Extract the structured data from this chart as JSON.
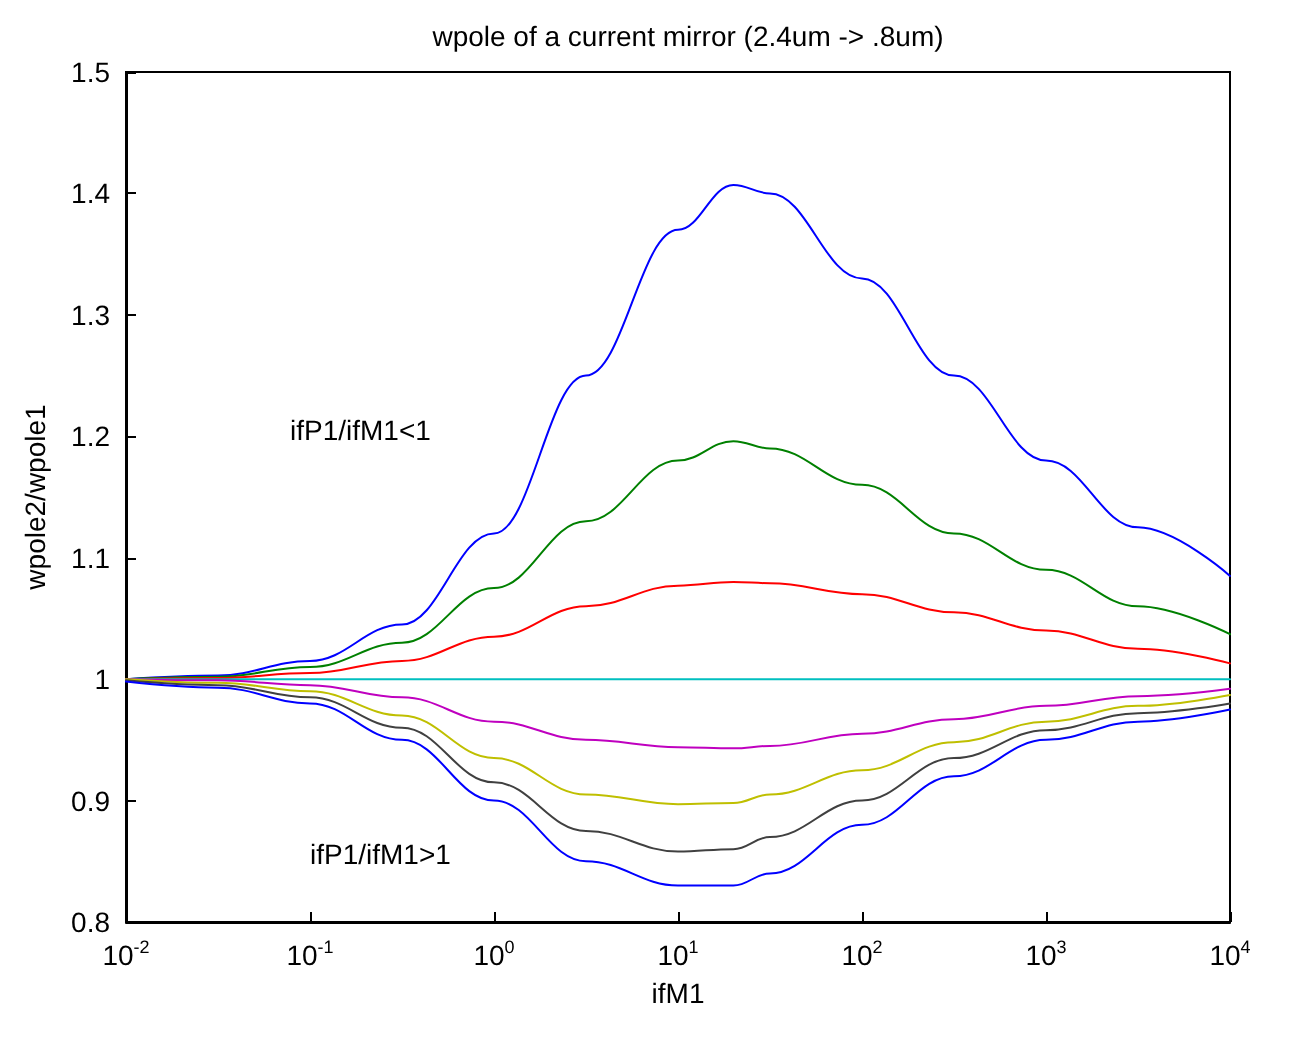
{
  "chart_data": {
    "type": "line",
    "title": "wpole of a current mirror (2.4um -> .8um)",
    "xlabel": "ifM1",
    "ylabel": "wpole2/wpole1",
    "x": [
      0.01,
      0.0316,
      0.1,
      0.316,
      1,
      3.16,
      10,
      20,
      31.6,
      100,
      316,
      1000,
      3162,
      10000
    ],
    "series": [
      {
        "color": "#0000ff",
        "values": [
          1.0,
          1.003,
          1.015,
          1.045,
          1.12,
          1.25,
          1.37,
          1.407,
          1.4,
          1.33,
          1.25,
          1.18,
          1.125,
          1.085
        ]
      },
      {
        "color": "#008000",
        "values": [
          1.0,
          1.002,
          1.01,
          1.03,
          1.075,
          1.13,
          1.18,
          1.196,
          1.19,
          1.16,
          1.12,
          1.09,
          1.06,
          1.037
        ]
      },
      {
        "color": "#ff0000",
        "values": [
          1.0,
          1.001,
          1.005,
          1.015,
          1.035,
          1.06,
          1.077,
          1.08,
          1.079,
          1.07,
          1.055,
          1.04,
          1.025,
          1.013
        ]
      },
      {
        "color": "#00bfbf",
        "values": [
          1,
          1,
          1,
          1,
          1,
          1,
          1,
          1,
          1,
          1,
          1,
          1,
          1,
          1
        ]
      },
      {
        "color": "#bf00bf",
        "values": [
          1.0,
          0.999,
          0.995,
          0.985,
          0.965,
          0.95,
          0.944,
          0.943,
          0.945,
          0.955,
          0.967,
          0.978,
          0.986,
          0.992
        ]
      },
      {
        "color": "#bfbf00",
        "values": [
          1.0,
          0.997,
          0.99,
          0.97,
          0.935,
          0.905,
          0.897,
          0.898,
          0.905,
          0.925,
          0.948,
          0.965,
          0.978,
          0.987
        ]
      },
      {
        "color": "#404040",
        "values": [
          0.999,
          0.995,
          0.985,
          0.96,
          0.915,
          0.875,
          0.858,
          0.86,
          0.87,
          0.9,
          0.935,
          0.958,
          0.972,
          0.98
        ]
      },
      {
        "color": "#0000ff",
        "values": [
          0.998,
          0.993,
          0.98,
          0.95,
          0.9,
          0.85,
          0.83,
          0.83,
          0.84,
          0.88,
          0.92,
          0.95,
          0.965,
          0.975
        ]
      }
    ],
    "log": "x",
    "xlim": [
      0.01,
      10000
    ],
    "xticks": [
      {
        "value": 0.01,
        "label": "10$^{-2}$"
      },
      {
        "value": 0.1,
        "label": "10$^{-1}$"
      },
      {
        "value": 1,
        "label": "10$^{0}$"
      },
      {
        "value": 10,
        "label": "10$^{1}$"
      },
      {
        "value": 100,
        "label": "10$^{2}$"
      },
      {
        "value": 1000,
        "label": "10$^{3}$"
      },
      {
        "value": 10000,
        "label": "10$^{4}$"
      }
    ],
    "ylim": [
      0.8,
      1.5
    ],
    "yticks": [
      0.8,
      0.9,
      1,
      1.1,
      1.2,
      1.3,
      1.4,
      1.5
    ],
    "annotations": [
      "ifP1/ifM1<1",
      "ifP1/ifM1>1"
    ],
    "grid": false,
    "marker": "none",
    "line_style": "solid"
  }
}
